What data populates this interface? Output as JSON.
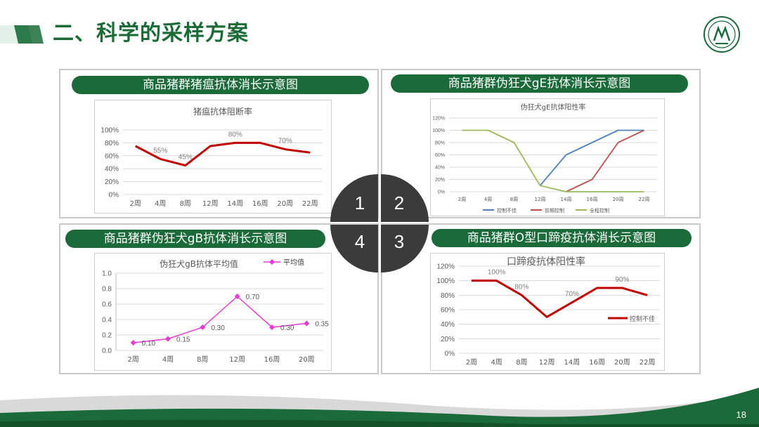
{
  "slide": {
    "title": "二、科学的采样方案",
    "page_number": "18",
    "colors": {
      "brand_green": "#1b6b3a",
      "dark_quad": "#3b3b3b"
    }
  },
  "quadrant_numbers": [
    "1",
    "2",
    "4",
    "3"
  ],
  "panels": {
    "p1": {
      "pill_title": "商品猪群猪瘟抗体消长示意图"
    },
    "p2": {
      "pill_title": "商品猪群伪狂犬gE抗体消长示意图"
    },
    "p3": {
      "pill_title": "商品猪群伪狂犬gB抗体消长示意图"
    },
    "p4": {
      "pill_title": "商品猪群O型口蹄疫抗体消长示意图"
    }
  },
  "chart_data": [
    {
      "type": "line",
      "title": "猪瘟抗体阻断率",
      "categories": [
        "2周",
        "4周",
        "8周",
        "12周",
        "14周",
        "16周",
        "20周",
        "22周"
      ],
      "series": [
        {
          "values": [
            75,
            55,
            45,
            75,
            80,
            80,
            70,
            65
          ],
          "color": "#c00000"
        }
      ],
      "data_labels": [
        {
          "index": 1,
          "text": "55%"
        },
        {
          "index": 2,
          "text": "45%"
        },
        {
          "index": 4,
          "text": "80%"
        },
        {
          "index": 6,
          "text": "70%"
        }
      ],
      "y_ticks": [
        "0%",
        "20%",
        "40%",
        "60%",
        "80%",
        "100%"
      ],
      "ylim": [
        0,
        100
      ],
      "grid": true
    },
    {
      "type": "line",
      "title": "伪狂犬gE抗体阳性率",
      "categories": [
        "2周",
        "4周",
        "8周",
        "12周",
        "14周",
        "16周",
        "20周",
        "22周"
      ],
      "series": [
        {
          "name": "控制不佳",
          "values": [
            null,
            null,
            null,
            10,
            60,
            80,
            100,
            100
          ],
          "color": "#4f81bd"
        },
        {
          "name": "前期控制",
          "values": [
            null,
            null,
            null,
            null,
            0,
            20,
            80,
            100
          ],
          "color": "#c0504d"
        },
        {
          "name": "全程控制",
          "values": [
            100,
            100,
            80,
            10,
            0,
            0,
            0,
            0
          ],
          "color": "#9bbb59"
        }
      ],
      "y_ticks": [
        "0%",
        "20%",
        "40%",
        "60%",
        "80%",
        "100%",
        "120%"
      ],
      "ylim": [
        0,
        120
      ],
      "legend_position": "bottom",
      "grid": true
    },
    {
      "type": "line",
      "title": "伪狂犬gB抗体平均值",
      "categories": [
        "2周",
        "4周",
        "8周",
        "12周",
        "16周",
        "20周"
      ],
      "series": [
        {
          "name": "平均值",
          "values": [
            0.1,
            0.15,
            0.3,
            0.7,
            0.3,
            0.35
          ],
          "color": "#e63bd2"
        }
      ],
      "data_labels": [
        "0.10",
        "0.15",
        "0.30",
        "0.70",
        "0.30",
        "0.35"
      ],
      "y_ticks": [
        "0.0",
        "0.2",
        "0.4",
        "0.6",
        "0.8",
        "1.0"
      ],
      "ylim": [
        0,
        1.0
      ],
      "legend_position": "top-right",
      "grid": true
    },
    {
      "type": "line",
      "title": "口蹄疫抗体阳性率",
      "categories": [
        "2周",
        "4周",
        "8周",
        "12周",
        "14周",
        "16周",
        "20周",
        "22周"
      ],
      "series": [
        {
          "name": "控制不佳",
          "values": [
            100,
            100,
            80,
            50,
            70,
            90,
            90,
            80
          ],
          "color": "#c00000"
        }
      ],
      "data_labels": [
        {
          "index": 1,
          "text": "100%"
        },
        {
          "index": 2,
          "text": "80%"
        },
        {
          "index": 4,
          "text": "70%"
        },
        {
          "index": 6,
          "text": "90%"
        }
      ],
      "y_ticks": [
        "0%",
        "20%",
        "40%",
        "60%",
        "80%",
        "100%",
        "120%"
      ],
      "ylim": [
        0,
        120
      ],
      "legend_position": "right",
      "grid": true
    }
  ]
}
